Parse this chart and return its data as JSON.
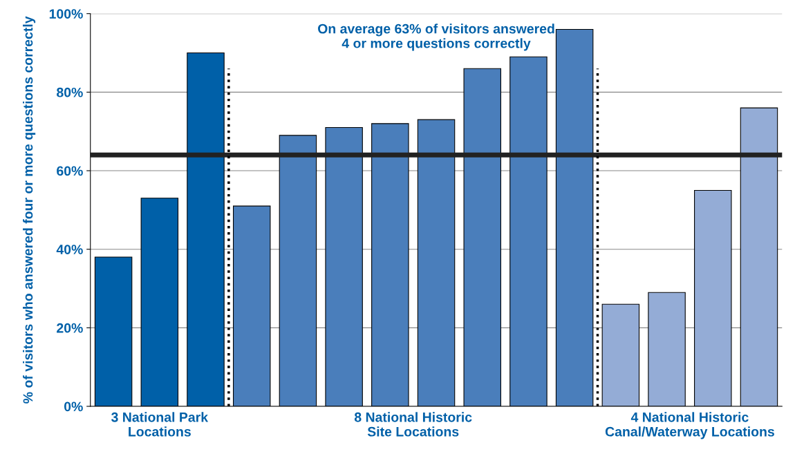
{
  "chart_data": {
    "type": "bar",
    "categories": [
      null,
      null,
      null,
      null,
      null,
      null,
      null,
      null,
      null,
      null,
      null,
      null,
      null,
      null,
      null
    ],
    "values": [
      38,
      53,
      90,
      51,
      69,
      71,
      72,
      73,
      86,
      89,
      96,
      26,
      29,
      55,
      76
    ],
    "colors": [
      "#0060a8",
      "#0060a8",
      "#0060a8",
      "#4a7ebb",
      "#4a7ebb",
      "#4a7ebb",
      "#4a7ebb",
      "#4a7ebb",
      "#4a7ebb",
      "#4a7ebb",
      "#4a7ebb",
      "#94acd6",
      "#94acd6",
      "#94acd6",
      "#94acd6"
    ],
    "ylim": [
      0,
      100
    ],
    "yticks": [
      {
        "value": 0,
        "label": "0%"
      },
      {
        "value": 20,
        "label": "20%"
      },
      {
        "value": 40,
        "label": "40%"
      },
      {
        "value": 60,
        "label": "60%"
      },
      {
        "value": 80,
        "label": "80%"
      },
      {
        "value": 100,
        "label": "100%"
      }
    ],
    "ylabel": "% of visitors who answered four or more questions correctly",
    "annotations": [
      "On average 63% of visitors answered\n4 or more questions correctly",
      "3 National Park\nLocations",
      "8 National Historic\nSite Locations",
      "4 National Historic\nCanal/Waterway Locations"
    ],
    "ref_lines": [
      {
        "axis": "y",
        "value": 64,
        "color": "#222222",
        "line_style": "solid"
      }
    ],
    "grid": "y",
    "legend": false
  }
}
